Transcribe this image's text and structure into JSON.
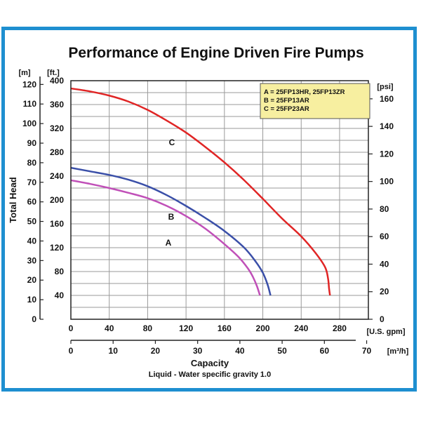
{
  "chart_data": {
    "type": "line",
    "title": "Performance of Engine Driven Fire Pumps",
    "xlabel": "Capacity",
    "subtitle": "Liquid - Water specific gravity 1.0",
    "ylabel": "Total Head",
    "x_unit_primary": "[U.S. gpm]",
    "x_unit_secondary": "[m³/h]",
    "y_unit_m": "[m]",
    "y_unit_ft": "[ft.]",
    "y_unit_psi": "[psi]",
    "xlim_gpm": [
      0,
      310
    ],
    "ylim_ft": [
      0,
      400
    ],
    "grid": true,
    "legend_placement": "top-right",
    "x_ticks_gpm": [
      0,
      40,
      80,
      120,
      160,
      200,
      240,
      280
    ],
    "x_ticks_m3h": [
      0,
      10,
      20,
      30,
      40,
      50,
      60,
      70
    ],
    "y_ticks_ft": [
      40,
      80,
      120,
      160,
      200,
      240,
      280,
      320,
      360,
      400
    ],
    "y_ticks_m": [
      0,
      10,
      20,
      30,
      40,
      50,
      60,
      70,
      80,
      90,
      100,
      110,
      120
    ],
    "y_ticks_psi": [
      0,
      20,
      40,
      60,
      80,
      100,
      120,
      140,
      160
    ],
    "legend": [
      "A = 25FP13HR, 25FP13ZR",
      "B = 25FP13AR",
      "C = 25FP23AR"
    ],
    "series": [
      {
        "name": "A",
        "color": "#c050b8",
        "x": [
          0,
          20,
          40,
          60,
          80,
          100,
          120,
          140,
          160,
          175,
          185,
          190,
          194,
          197
        ],
        "y": [
          233,
          227,
          220,
          212,
          203,
          190,
          173,
          152,
          126,
          104,
          84,
          70,
          55,
          40
        ]
      },
      {
        "name": "B",
        "color": "#3a4fa8",
        "x": [
          0,
          20,
          40,
          60,
          80,
          100,
          120,
          140,
          160,
          180,
          192,
          200,
          205,
          208
        ],
        "y": [
          254,
          248,
          242,
          234,
          223,
          208,
          190,
          170,
          148,
          121,
          98,
          78,
          58,
          40
        ]
      },
      {
        "name": "C",
        "color": "#e02525",
        "x": [
          0,
          20,
          40,
          60,
          80,
          100,
          120,
          140,
          160,
          180,
          200,
          220,
          240,
          255,
          265,
          268,
          269,
          270
        ],
        "y": [
          387,
          382,
          375,
          365,
          351,
          333,
          313,
          289,
          263,
          234,
          202,
          169,
          139,
          111,
          87,
          68,
          52,
          40
        ]
      }
    ]
  }
}
